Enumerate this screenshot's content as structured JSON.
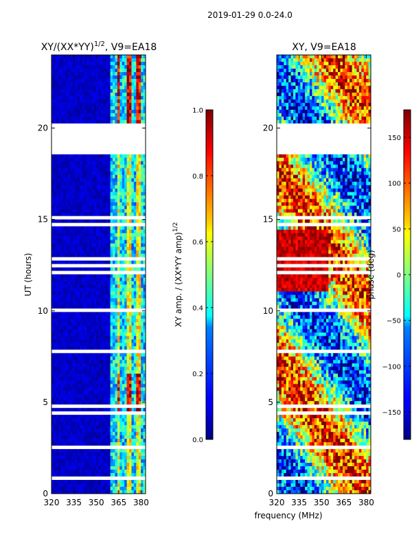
{
  "suptitle": "2019-01-29 0.0-24.0",
  "xlabel": "frequency (MHz)",
  "colors": {
    "background": "#ffffff",
    "masked": "#ffffff",
    "axis": "#000000",
    "jet_low": "#00007f",
    "jet_high": "#7f0000"
  },
  "chart_data": [
    {
      "type": "heatmap",
      "title": "XY/(XX*YY)",
      "title_exponent": "1/2",
      "title_suffix": ", V9=EA18",
      "ylabel": "UT (hours)",
      "x_ticks": [
        320,
        335,
        350,
        365,
        380
      ],
      "xlim": [
        320,
        383
      ],
      "y_ticks": [
        0,
        5,
        10,
        15,
        20
      ],
      "ylim": [
        0,
        24
      ],
      "gaps_hours": [
        [
          18.6,
          20.3
        ]
      ],
      "active_band_mhz": [
        360,
        383
      ],
      "colorbar": {
        "label": "XY amp. / (XX*YY amp)",
        "label_exponent": "1/2",
        "ticks": [
          "0.0",
          "0.2",
          "0.4",
          "0.6",
          "0.8",
          "1.0"
        ],
        "range": [
          0,
          1
        ]
      }
    },
    {
      "type": "heatmap",
      "title": "XY, V9=EA18",
      "ylabel": "",
      "x_ticks": [
        320,
        335,
        350,
        365,
        380
      ],
      "xlim": [
        320,
        383
      ],
      "y_ticks": [
        0,
        5,
        10,
        15,
        20
      ],
      "ylim": [
        0,
        24
      ],
      "gaps_hours": [
        [
          18.6,
          20.3
        ]
      ],
      "colorbar": {
        "label": "phase (deg)",
        "ticks": [
          "150",
          "100",
          "50",
          "0",
          "−50",
          "−100",
          "−150"
        ],
        "tick_values": [
          150,
          100,
          50,
          0,
          -50,
          -100,
          -150
        ],
        "range": [
          -180,
          180
        ]
      }
    }
  ]
}
